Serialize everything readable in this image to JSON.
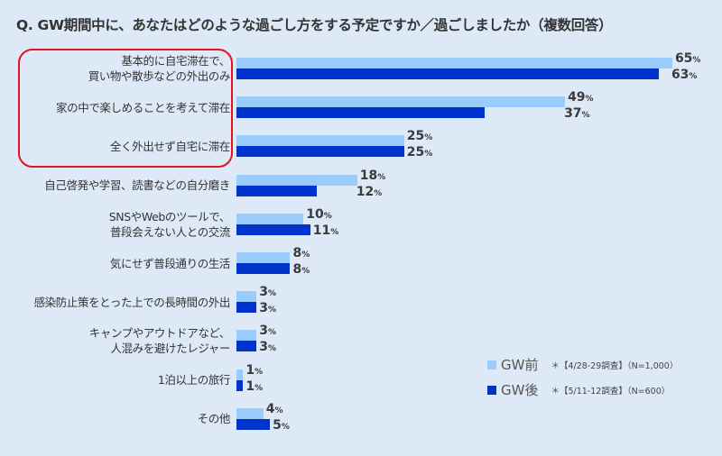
{
  "title": "Q. GW期間中に、あなたはどのような過ごし方をする予定ですか／過ごしましたか（複数回答）",
  "colors": {
    "before": "#99ccfa",
    "after": "#0033cc",
    "highlight": "#e0141e",
    "background": "#dde9f6"
  },
  "legend": {
    "items": [
      {
        "label": "GW前",
        "note": "＊【4/28-29調査】（N=1,000）"
      },
      {
        "label": "GW後",
        "note": "＊【5/11-12調査】（N=600）"
      }
    ]
  },
  "percent_suffix": "%",
  "chart_data": {
    "type": "bar",
    "orientation": "horizontal",
    "title": "Q. GW期間中に、あなたはどのような過ごし方をする予定ですか／過ごしましたか（複数回答）",
    "categories": [
      "基本的に自宅滞在で、買い物や散歩などの外出のみ",
      "家の中で楽しめることを考えて滞在",
      "全く外出せず自宅に滞在",
      "自己啓発や学習、読書などの自分磨き",
      "SNSやWebのツールで、普段会えない人との交流",
      "気にせず普段通りの生活",
      "感染防止策をとった上での長時間の外出",
      "キャンプやアウトドアなど、人混みを避けたレジャー",
      "1泊以上の旅行",
      "その他"
    ],
    "series": [
      {
        "name": "GW前",
        "note": "＊【4/28-29調査】（N=1,000）",
        "values": [
          65,
          49,
          25,
          18,
          10,
          8,
          3,
          3,
          1,
          4
        ]
      },
      {
        "name": "GW後",
        "note": "＊【5/11-12調査】（N=600）",
        "values": [
          63,
          37,
          25,
          12,
          11,
          8,
          3,
          3,
          1,
          5
        ]
      }
    ],
    "unit": "%",
    "xlabel": "",
    "ylabel": "",
    "grid": false,
    "legend_position": "bottom-right",
    "annotations": [
      "Red rounded box highlighting the top three categories"
    ]
  },
  "rows": [
    {
      "lines": [
        "基本的に自宅滞在で、",
        "買い物や散歩などの外出のみ"
      ],
      "before": "65",
      "after": "63"
    },
    {
      "lines": [
        "家の中で楽しめることを考えて滞在"
      ],
      "before": "49",
      "after": "37"
    },
    {
      "lines": [
        "全く外出せず自宅に滞在"
      ],
      "before": "25",
      "after": "25"
    },
    {
      "lines": [
        "自己啓発や学習、読書などの自分磨き"
      ],
      "before": "18",
      "after": "12"
    },
    {
      "lines": [
        "SNSやWebのツールで、",
        "普段会えない人との交流"
      ],
      "before": "10",
      "after": "11"
    },
    {
      "lines": [
        "気にせず普段通りの生活"
      ],
      "before": "8",
      "after": "8"
    },
    {
      "lines": [
        "感染防止策をとった上での長時間の外出"
      ],
      "before": "3",
      "after": "3"
    },
    {
      "lines": [
        "キャンプやアウトドアなど、",
        "人混みを避けたレジャー"
      ],
      "before": "3",
      "after": "3"
    },
    {
      "lines": [
        "1泊以上の旅行"
      ],
      "before": "1",
      "after": "1"
    },
    {
      "lines": [
        "その他"
      ],
      "before": "4",
      "after": "5"
    }
  ]
}
